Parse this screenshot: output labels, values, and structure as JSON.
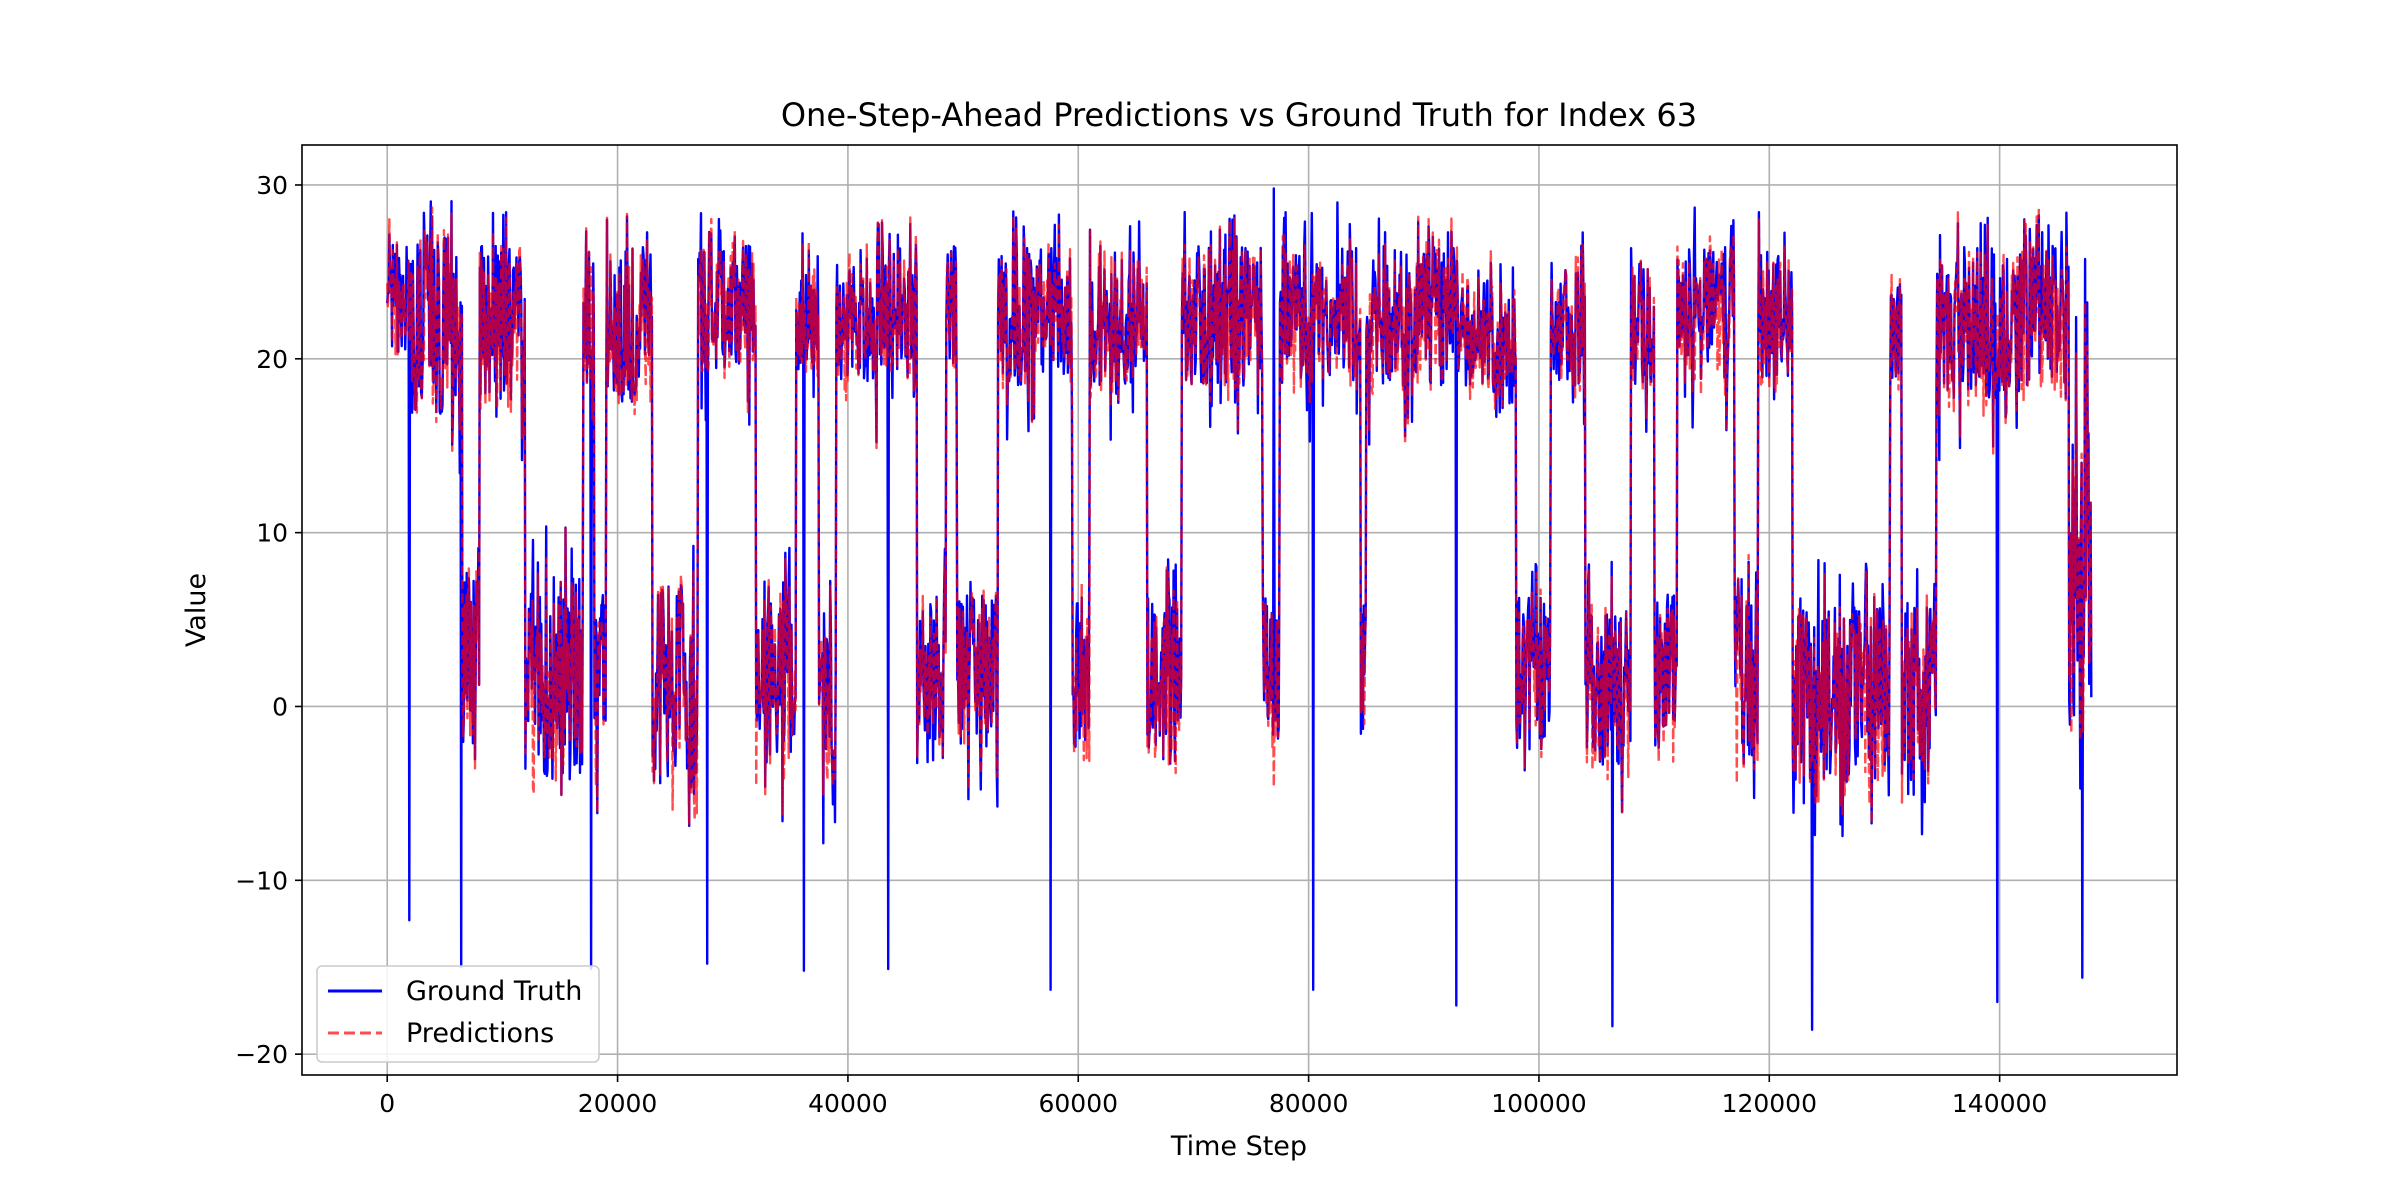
{
  "chart_data": {
    "type": "line",
    "title": "One-Step-Ahead Predictions vs Ground Truth for Index 63",
    "xlabel": "Time Step",
    "ylabel": "Value",
    "xlim": [
      -7400,
      155400
    ],
    "ylim": [
      -21.2,
      32.3
    ],
    "xticks": [
      0,
      20000,
      40000,
      60000,
      80000,
      100000,
      120000,
      140000
    ],
    "xtick_labels": [
      "0",
      "20000",
      "40000",
      "60000",
      "80000",
      "100000",
      "120000",
      "140000"
    ],
    "yticks": [
      -20,
      -10,
      0,
      10,
      20,
      30
    ],
    "ytick_labels": [
      "−20",
      "−10",
      "0",
      "10",
      "20",
      "30"
    ],
    "grid": true,
    "legend_position": "lower-left",
    "n_points": 148000,
    "regimes": [
      {
        "x": [
          0,
          2000
        ],
        "range": [
          20,
          27
        ]
      },
      {
        "x": [
          2000,
          6500
        ],
        "range": [
          16,
          28
        ]
      },
      {
        "x": [
          6500,
          8000
        ],
        "range": [
          -3,
          9
        ]
      },
      {
        "x": [
          8000,
          12000
        ],
        "range": [
          17,
          27
        ]
      },
      {
        "x": [
          12000,
          17000
        ],
        "range": [
          -5,
          9
        ]
      },
      {
        "x": [
          17000,
          18000
        ],
        "range": [
          18,
          26
        ]
      },
      {
        "x": [
          18000,
          19000
        ],
        "range": [
          -4,
          7
        ]
      },
      {
        "x": [
          19000,
          23000
        ],
        "range": [
          17,
          27
        ]
      },
      {
        "x": [
          23000,
          27000
        ],
        "range": [
          -6,
          8
        ]
      },
      {
        "x": [
          27000,
          32000
        ],
        "range": [
          19,
          27
        ]
      },
      {
        "x": [
          32000,
          35500
        ],
        "range": [
          -4,
          8
        ]
      },
      {
        "x": [
          35500,
          37500
        ],
        "range": [
          19,
          27
        ]
      },
      {
        "x": [
          37500,
          39000
        ],
        "range": [
          -5,
          8
        ]
      },
      {
        "x": [
          39000,
          46000
        ],
        "range": [
          18,
          27
        ]
      },
      {
        "x": [
          46000,
          48500
        ],
        "range": [
          -4,
          8
        ]
      },
      {
        "x": [
          48500,
          49500
        ],
        "range": [
          18,
          27
        ]
      },
      {
        "x": [
          49500,
          53000
        ],
        "range": [
          -3,
          7
        ]
      },
      {
        "x": [
          53000,
          59500
        ],
        "range": [
          18,
          27
        ]
      },
      {
        "x": [
          59500,
          61000
        ],
        "range": [
          -3,
          7
        ]
      },
      {
        "x": [
          61000,
          66000
        ],
        "range": [
          18,
          27
        ]
      },
      {
        "x": [
          66000,
          69000
        ],
        "range": [
          -4,
          7
        ]
      },
      {
        "x": [
          69000,
          76000
        ],
        "range": [
          18,
          27
        ]
      },
      {
        "x": [
          76000,
          77500
        ],
        "range": [
          -3,
          7
        ]
      },
      {
        "x": [
          77500,
          84500
        ],
        "range": [
          18,
          27
        ]
      },
      {
        "x": [
          84500,
          85000
        ],
        "range": [
          -3,
          7
        ]
      },
      {
        "x": [
          85000,
          93000
        ],
        "range": [
          18,
          27
        ]
      },
      {
        "x": [
          93000,
          96000
        ],
        "range": [
          18,
          25
        ]
      },
      {
        "x": [
          96000,
          98000
        ],
        "range": [
          16,
          24
        ]
      },
      {
        "x": [
          98000,
          101000
        ],
        "range": [
          -3,
          7
        ]
      },
      {
        "x": [
          101000,
          104000
        ],
        "range": [
          18,
          26
        ]
      },
      {
        "x": [
          104000,
          108000
        ],
        "range": [
          -4,
          7
        ]
      },
      {
        "x": [
          108000,
          110000
        ],
        "range": [
          18,
          26
        ]
      },
      {
        "x": [
          110000,
          112000
        ],
        "range": [
          -3,
          7
        ]
      },
      {
        "x": [
          112000,
          117000
        ],
        "range": [
          18,
          27
        ]
      },
      {
        "x": [
          117000,
          119000
        ],
        "range": [
          -4,
          7
        ]
      },
      {
        "x": [
          119000,
          122000
        ],
        "range": [
          18,
          27
        ]
      },
      {
        "x": [
          122000,
          130500
        ],
        "range": [
          -5,
          7
        ]
      },
      {
        "x": [
          130500,
          131500
        ],
        "range": [
          18,
          25
        ]
      },
      {
        "x": [
          131500,
          134500
        ],
        "range": [
          -5,
          7
        ]
      },
      {
        "x": [
          134500,
          146000
        ],
        "range": [
          17,
          27
        ]
      },
      {
        "x": [
          146000,
          148000
        ],
        "range": [
          -3,
          25
        ]
      }
    ],
    "notable_points": [
      {
        "x": 77000,
        "y": 29.8
      },
      {
        "x": 82500,
        "y": 29.0
      },
      {
        "x": 113500,
        "y": 28.7
      },
      {
        "x": 3200,
        "y": 28.4
      },
      {
        "x": 1900,
        "y": -12.3
      },
      {
        "x": 6400,
        "y": -15.0
      },
      {
        "x": 17700,
        "y": -15.1
      },
      {
        "x": 27800,
        "y": -14.8
      },
      {
        "x": 36200,
        "y": -15.2
      },
      {
        "x": 43500,
        "y": -15.1
      },
      {
        "x": 57600,
        "y": -16.3
      },
      {
        "x": 80400,
        "y": -16.3
      },
      {
        "x": 92800,
        "y": -17.2
      },
      {
        "x": 106400,
        "y": -18.4
      },
      {
        "x": 123700,
        "y": -18.6
      },
      {
        "x": 139800,
        "y": -17.0
      },
      {
        "x": 147200,
        "y": -15.6
      }
    ],
    "series": [
      {
        "name": "Ground Truth",
        "color": "#0000ff",
        "style": "solid"
      },
      {
        "name": "Predictions",
        "color": "#ff0000",
        "style": "dashed",
        "opacity": 0.7
      }
    ]
  }
}
